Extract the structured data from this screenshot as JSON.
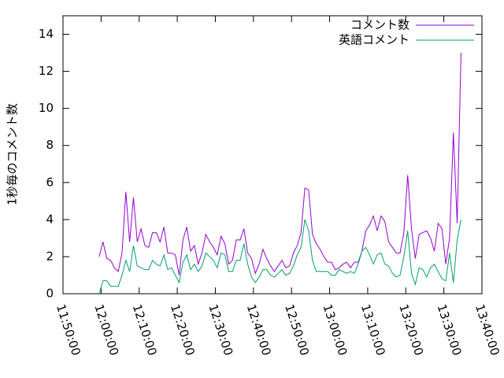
{
  "chart_data": {
    "type": "line",
    "ylabel": "1秒毎のコメント数",
    "x": [
      "11:59:30",
      "12:00:30",
      "12:01:30",
      "12:02:30",
      "12:03:30",
      "12:04:30",
      "12:05:30",
      "12:06:30",
      "12:07:30",
      "12:08:30",
      "12:09:30",
      "12:10:30",
      "12:11:30",
      "12:12:30",
      "12:13:30",
      "12:14:30",
      "12:15:30",
      "12:16:30",
      "12:17:30",
      "12:18:30",
      "12:19:30",
      "12:20:30",
      "12:21:30",
      "12:22:30",
      "12:23:30",
      "12:24:30",
      "12:25:30",
      "12:26:30",
      "12:27:30",
      "12:28:30",
      "12:29:30",
      "12:30:30",
      "12:31:30",
      "12:32:30",
      "12:33:30",
      "12:34:30",
      "12:35:30",
      "12:36:30",
      "12:37:30",
      "12:38:30",
      "12:39:30",
      "12:40:30",
      "12:41:30",
      "12:42:30",
      "12:43:30",
      "12:44:30",
      "12:45:30",
      "12:46:30",
      "12:47:30",
      "12:48:30",
      "12:49:30",
      "12:50:30",
      "12:51:30",
      "12:52:30",
      "12:53:30",
      "12:54:30",
      "12:55:30",
      "12:56:30",
      "12:57:30",
      "12:58:30",
      "12:59:30",
      "13:00:30",
      "13:01:30",
      "13:02:30",
      "13:03:30",
      "13:04:30",
      "13:05:30",
      "13:06:30",
      "13:07:30",
      "13:08:30",
      "13:09:30",
      "13:10:30",
      "13:11:30",
      "13:12:30",
      "13:13:30",
      "13:14:30",
      "13:15:30",
      "13:16:30",
      "13:17:30",
      "13:18:30",
      "13:19:30",
      "13:20:30",
      "13:21:30",
      "13:22:30",
      "13:23:30",
      "13:24:30",
      "13:25:30",
      "13:26:30",
      "13:27:30",
      "13:28:30",
      "13:29:30",
      "13:30:30",
      "13:31:30",
      "13:32:30",
      "13:33:30",
      "13:34:30"
    ],
    "series": [
      {
        "name": "コメント数",
        "color": "#9400d3",
        "values": [
          2.0,
          2.8,
          1.9,
          1.8,
          1.4,
          1.2,
          2.2,
          5.5,
          2.8,
          5.2,
          2.8,
          3.5,
          2.6,
          2.5,
          3.3,
          3.3,
          2.8,
          3.6,
          2.2,
          2.2,
          2.1,
          1.0,
          2.9,
          3.6,
          2.3,
          2.6,
          1.6,
          2.2,
          3.2,
          2.8,
          2.5,
          2.1,
          3.1,
          2.7,
          1.6,
          1.8,
          2.9,
          2.9,
          3.5,
          2.2,
          1.9,
          1.1,
          1.6,
          2.4,
          1.9,
          1.5,
          1.2,
          1.5,
          1.8,
          1.4,
          1.5,
          2.2,
          2.6,
          3.3,
          5.7,
          5.6,
          3.2,
          2.7,
          2.4,
          2.0,
          1.7,
          1.7,
          1.3,
          1.4,
          1.6,
          1.7,
          1.4,
          1.7,
          1.7,
          2.3,
          3.4,
          3.7,
          4.2,
          3.4,
          4.2,
          3.9,
          2.8,
          2.5,
          2.2,
          2.2,
          3.3,
          6.4,
          3.5,
          1.9,
          3.2,
          3.3,
          3.4,
          3.0,
          2.3,
          3.8,
          3.5,
          1.6,
          3.0,
          8.7,
          3.8,
          13.0
        ]
      },
      {
        "name": "英語コメント",
        "color": "#009e73",
        "values": [
          0.0,
          0.7,
          0.7,
          0.4,
          0.4,
          0.4,
          1.0,
          1.8,
          1.2,
          2.6,
          1.5,
          1.4,
          1.3,
          1.3,
          1.8,
          1.6,
          1.5,
          2.1,
          1.3,
          1.4,
          1.0,
          0.6,
          1.7,
          2.1,
          1.3,
          1.6,
          1.2,
          1.5,
          2.2,
          2.0,
          1.8,
          1.4,
          2.2,
          2.1,
          1.2,
          1.2,
          1.8,
          1.8,
          2.7,
          1.6,
          0.9,
          0.6,
          0.9,
          1.3,
          1.3,
          1.0,
          0.9,
          1.1,
          1.3,
          1.0,
          1.1,
          1.5,
          2.1,
          2.5,
          4.0,
          3.4,
          1.8,
          1.2,
          1.2,
          1.2,
          1.2,
          1.0,
          1.0,
          1.3,
          1.2,
          1.1,
          1.2,
          1.1,
          1.6,
          2.3,
          2.5,
          2.1,
          1.6,
          2.1,
          2.2,
          1.6,
          1.5,
          1.1,
          0.9,
          1.0,
          2.0,
          3.4,
          1.1,
          0.5,
          1.4,
          1.3,
          0.9,
          1.4,
          1.6,
          1.2,
          0.8,
          0.7,
          2.2,
          0.6,
          2.9,
          4.0
        ]
      }
    ],
    "xlim": [
      "11:50:00",
      "13:40:00"
    ],
    "xticks": [
      "11:50:00",
      "12:00:00",
      "12:10:00",
      "12:20:00",
      "12:30:00",
      "12:40:00",
      "12:50:00",
      "13:00:00",
      "13:10:00",
      "13:20:00",
      "13:30:00",
      "13:40:00"
    ],
    "ylim": [
      0,
      15
    ],
    "yticks": [
      0,
      2,
      4,
      6,
      8,
      10,
      12,
      14
    ],
    "legend": "top-right"
  }
}
